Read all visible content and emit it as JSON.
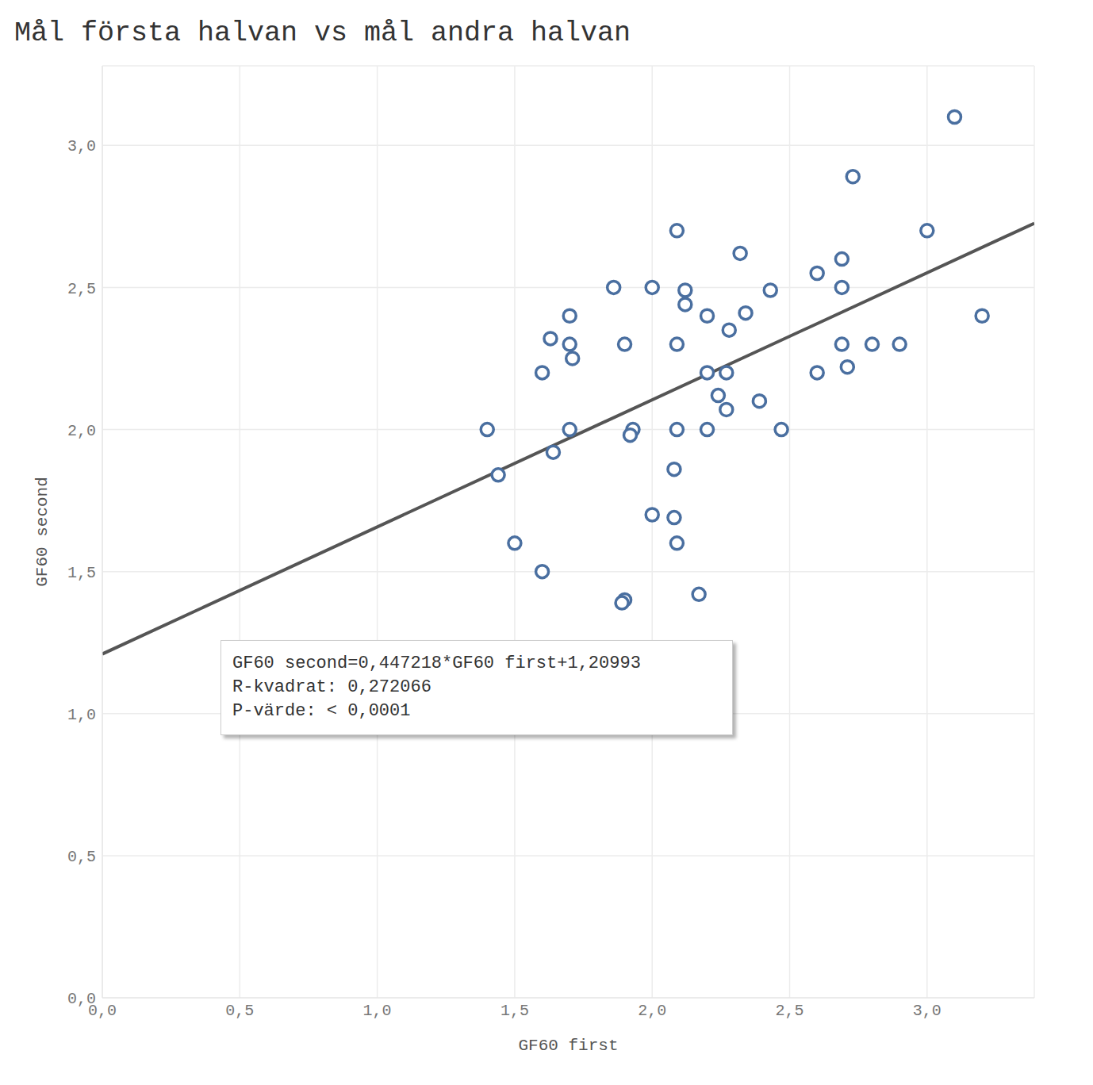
{
  "chart_data": {
    "type": "scatter",
    "title": "Mål första halvan vs mål andra halvan",
    "x_label": "GF60 first",
    "y_label": "GF60 second",
    "x": [
      3.1,
      2.73,
      2.09,
      3.0,
      2.32,
      2.69,
      2.6,
      1.86,
      2.0,
      2.12,
      2.43,
      2.69,
      2.12,
      1.7,
      2.2,
      2.34,
      3.2,
      2.28,
      1.63,
      1.7,
      1.9,
      2.09,
      2.69,
      2.8,
      2.9,
      1.71,
      2.71,
      1.6,
      2.2,
      2.27,
      2.6,
      2.24,
      2.39,
      2.27,
      1.4,
      1.7,
      1.93,
      2.09,
      2.2,
      2.47,
      1.92,
      1.64,
      1.44,
      2.08,
      2.0,
      2.08,
      1.5,
      2.09,
      1.6,
      2.17,
      1.9,
      1.89
    ],
    "values": [
      3.1,
      2.89,
      2.7,
      2.7,
      2.62,
      2.6,
      2.55,
      2.5,
      2.5,
      2.49,
      2.49,
      2.5,
      2.44,
      2.4,
      2.4,
      2.41,
      2.4,
      2.35,
      2.32,
      2.3,
      2.3,
      2.3,
      2.3,
      2.3,
      2.3,
      2.25,
      2.22,
      2.2,
      2.2,
      2.2,
      2.2,
      2.12,
      2.1,
      2.07,
      2.0,
      2.0,
      2.0,
      2.0,
      2.0,
      2.0,
      1.98,
      1.92,
      1.84,
      1.86,
      1.7,
      1.69,
      1.6,
      1.6,
      1.5,
      1.42,
      1.4,
      1.39
    ],
    "color": "#4a6fa0",
    "marker": "open_circle",
    "xlim": [
      0,
      3.39
    ],
    "ylim": [
      0,
      3.28
    ],
    "xticks": [
      {
        "value": 0,
        "label": "0,0"
      },
      {
        "value": 0.5,
        "label": "0,5"
      },
      {
        "value": 1,
        "label": "1,0"
      },
      {
        "value": 1.5,
        "label": "1,5"
      },
      {
        "value": 2,
        "label": "2,0"
      },
      {
        "value": 2.5,
        "label": "2,5"
      },
      {
        "value": 3,
        "label": "3,0"
      }
    ],
    "yticks": [
      {
        "value": 0,
        "label": "0,0"
      },
      {
        "value": 0.5,
        "label": "0,5"
      },
      {
        "value": 1,
        "label": "1,0"
      },
      {
        "value": 1.5,
        "label": "1,5"
      },
      {
        "value": 2,
        "label": "2,0"
      },
      {
        "value": 2.5,
        "label": "2,5"
      },
      {
        "value": 3,
        "label": "3,0"
      }
    ],
    "grid": true,
    "regression": {
      "slope": 0.447218,
      "intercept": 1.20993
    },
    "annotation": [
      "GF60 second=0,447218*GF60 first+1,20993",
      "R-kvadrat: 0,272066",
      "P-värde: < 0,0001"
    ]
  }
}
